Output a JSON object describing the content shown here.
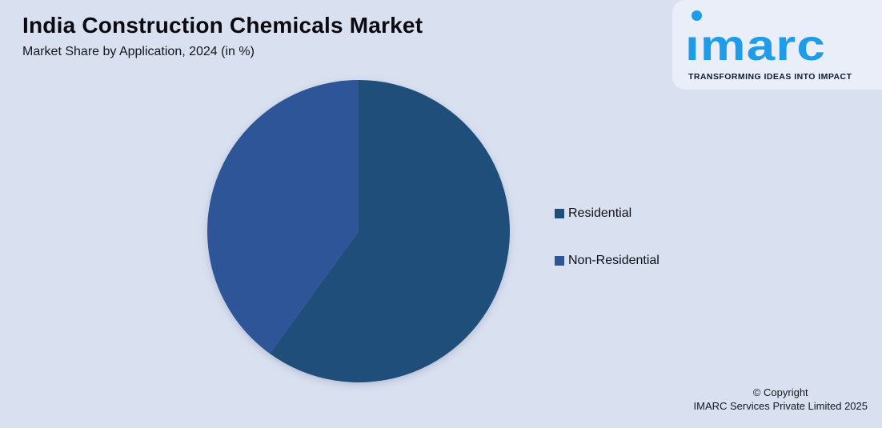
{
  "page": {
    "background": "#d9e1f1"
  },
  "header": {
    "title": "India Construction Chemicals Market",
    "subtitle": "Market Share by Application, 2024 (in %)"
  },
  "logo": {
    "brand": "imarc",
    "tagline": "TRANSFORMING IDEAS INTO IMPACT",
    "brand_color": "#1e9be9",
    "card_bg": "#e9eef8"
  },
  "chart_data": {
    "type": "pie",
    "title": "India Construction Chemicals Market",
    "subtitle": "Market Share by Application, 2024 (in %)",
    "slices": [
      {
        "label": "Residential",
        "value": 60,
        "color": "#1F4E7A"
      },
      {
        "label": "Non-Residential",
        "value": 40,
        "color": "#2F5599"
      }
    ],
    "start_angle_deg": 0,
    "direction": "clockwise",
    "legend_position": "right",
    "data_labels": false
  },
  "footer": {
    "line1": "© Copyright",
    "line2": "IMARC Services Private Limited 2025"
  }
}
